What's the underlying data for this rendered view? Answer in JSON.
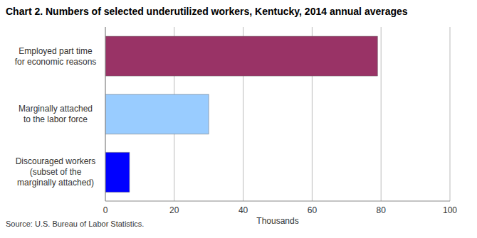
{
  "chart_data": {
    "type": "bar",
    "title": "Chart 2. Numbers of selected underutilized workers, Kentucky, 2014 annual averages",
    "xlabel": "Thousands",
    "source": "Source: U.S. Bureau of Labor Statistics.",
    "categories": [
      "Employed part time for economic reasons",
      "Marginally attached to the labor force",
      "Discouraged workers (subset of the marginally attached)"
    ],
    "values": [
      79,
      30,
      7
    ],
    "colors": [
      "#993366",
      "#99ccff",
      "#0000ff"
    ],
    "xlim": [
      0,
      100
    ],
    "xticks": [
      0,
      20,
      40,
      60,
      80,
      100
    ],
    "grid": true,
    "orientation": "horizontal"
  }
}
